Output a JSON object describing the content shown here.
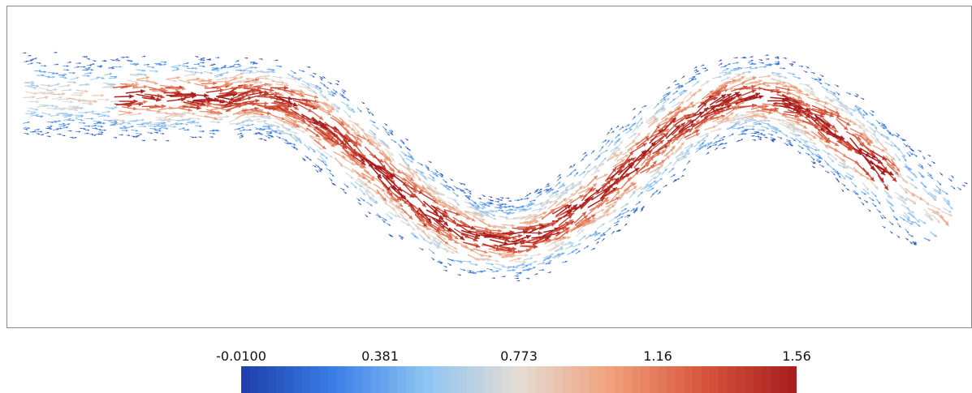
{
  "chart_data": {
    "type": "vector-field",
    "field": {
      "channel": "sinusoidal channel",
      "periods": 2,
      "flow_direction": "left-to-right",
      "glyph": "arrow",
      "color_by": "velocity magnitude"
    },
    "colorbar": {
      "orientation": "horizontal",
      "placement": "bottom",
      "range": [
        -0.01,
        1.56
      ],
      "ticks": [
        -0.01,
        0.381,
        0.773,
        1.16,
        1.56
      ],
      "tick_labels": [
        "-0.0100",
        "0.381",
        "0.773",
        "1.16",
        "1.56"
      ],
      "colormap": "cool-to-warm",
      "colors": [
        "#1f3ea8",
        "#3a7ee8",
        "#8fc4f2",
        "#e4dcd4",
        "#f0a07a",
        "#d7553d",
        "#a71d1d"
      ]
    },
    "grid": false,
    "title": "",
    "xlabel": "",
    "ylabel": ""
  }
}
